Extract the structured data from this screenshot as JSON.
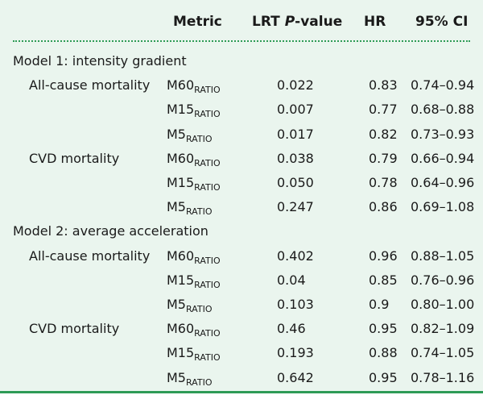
{
  "headers": {
    "metric": "Metric",
    "lrt_prefix": "LRT ",
    "lrt_italic": "P",
    "lrt_suffix": "-value",
    "hr": "HR",
    "ci": "95% CI"
  },
  "sections": [
    {
      "title": "Model 1: intensity gradient",
      "outcomes": [
        {
          "name": "All-cause mortality",
          "rows": [
            {
              "metric": "M60",
              "sub": "RATIO",
              "p": "0.022",
              "hr": "0.83",
              "ci": "0.74–0.94"
            },
            {
              "metric": "M15",
              "sub": "RATIO",
              "p": "0.007",
              "hr": "0.77",
              "ci": "0.68–0.88"
            },
            {
              "metric": "M5",
              "sub": "RATIO",
              "p": "0.017",
              "hr": "0.82",
              "ci": "0.73–0.93"
            }
          ]
        },
        {
          "name": "CVD mortality",
          "rows": [
            {
              "metric": "M60",
              "sub": "RATIO",
              "p": "0.038",
              "hr": "0.79",
              "ci": "0.66–0.94"
            },
            {
              "metric": "M15",
              "sub": "RATIO",
              "p": "0.050",
              "hr": "0.78",
              "ci": "0.64–0.96"
            },
            {
              "metric": "M5",
              "sub": "RATIO",
              "p": "0.247",
              "hr": "0.86",
              "ci": "0.69–1.08"
            }
          ]
        }
      ]
    },
    {
      "title": "Model 2: average acceleration",
      "outcomes": [
        {
          "name": "All-cause mortality",
          "rows": [
            {
              "metric": "M60",
              "sub": "RATIO",
              "p": "0.402",
              "hr": "0.96",
              "ci": "0.88–1.05"
            },
            {
              "metric": "M15",
              "sub": "RATIO",
              "p": "0.04",
              "hr": "0.85",
              "ci": "0.76–0.96"
            },
            {
              "metric": "M5",
              "sub": "RATIO",
              "p": "0.103",
              "hr": "0.9",
              "ci": "0.80–1.00"
            }
          ]
        },
        {
          "name": "CVD mortality",
          "rows": [
            {
              "metric": "M60",
              "sub": "RATIO",
              "p": "0.46",
              "hr": "0.95",
              "ci": "0.82–1.09"
            },
            {
              "metric": "M15",
              "sub": "RATIO",
              "p": "0.193",
              "hr": "0.88",
              "ci": "0.74–1.05"
            },
            {
              "metric": "M5",
              "sub": "RATIO",
              "p": "0.642",
              "hr": "0.95",
              "ci": "0.78–1.16"
            }
          ]
        }
      ]
    }
  ]
}
